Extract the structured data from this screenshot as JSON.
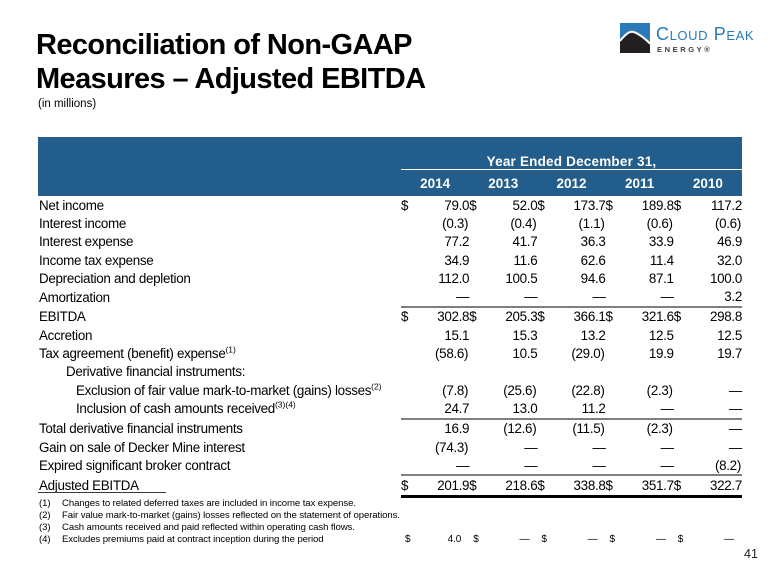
{
  "slide": {
    "title_line1": "Reconciliation of Non-GAAP",
    "title_line2": "Measures – Adjusted EBITDA",
    "subtitle": "(in millions)",
    "page_number": "41"
  },
  "logo": {
    "company": "Cloud Peak",
    "division": "ENERGY®",
    "brand_blue": "#2B7AB8",
    "icon_dark": "#231F20"
  },
  "colors": {
    "header_bg": "#235D8C",
    "header_text": "#FFFFFF",
    "rule_gray": "#7F7F7F",
    "rule_black": "#000000"
  },
  "table": {
    "group_header": "Year Ended December 31,",
    "years": [
      "2014",
      "2013",
      "2012",
      "2011",
      "2010"
    ],
    "rows": [
      {
        "label": "Net income",
        "indent": 0,
        "sup": "",
        "dollar": true,
        "top_rule": false,
        "bottom_rule": false,
        "values": [
          "79.0",
          "52.0",
          "173.7",
          "189.8",
          "117.2"
        ]
      },
      {
        "label": "Interest income",
        "indent": 0,
        "sup": "",
        "dollar": false,
        "top_rule": false,
        "bottom_rule": false,
        "values": [
          "(0.3)",
          "(0.4)",
          "(1.1)",
          "(0.6)",
          "(0.6)"
        ]
      },
      {
        "label": "Interest expense",
        "indent": 0,
        "sup": "",
        "dollar": false,
        "top_rule": false,
        "bottom_rule": false,
        "values": [
          "77.2",
          "41.7",
          "36.3",
          "33.9",
          "46.9"
        ]
      },
      {
        "label": "Income tax expense",
        "indent": 0,
        "sup": "",
        "dollar": false,
        "top_rule": false,
        "bottom_rule": false,
        "values": [
          "34.9",
          "11.6",
          "62.6",
          "11.4",
          "32.0"
        ]
      },
      {
        "label": "Depreciation and depletion",
        "indent": 0,
        "sup": "",
        "dollar": false,
        "top_rule": false,
        "bottom_rule": false,
        "values": [
          "112.0",
          "100.5",
          "94.6",
          "87.1",
          "100.0"
        ]
      },
      {
        "label": "Amortization",
        "indent": 0,
        "sup": "",
        "dollar": false,
        "top_rule": false,
        "bottom_rule": false,
        "values": [
          "—",
          "—",
          "—",
          "—",
          "3.2"
        ]
      },
      {
        "label": "EBITDA",
        "indent": 0,
        "sup": "",
        "dollar": true,
        "top_rule": true,
        "bottom_rule": false,
        "values": [
          "302.8",
          "205.3",
          "366.1",
          "321.6",
          "298.8"
        ]
      },
      {
        "label": "Accretion",
        "indent": 0,
        "sup": "",
        "dollar": false,
        "top_rule": false,
        "bottom_rule": false,
        "values": [
          "15.1",
          "15.3",
          "13.2",
          "12.5",
          "12.5"
        ]
      },
      {
        "label": "Tax agreement (benefit) expense",
        "indent": 0,
        "sup": "(1)",
        "dollar": false,
        "top_rule": false,
        "bottom_rule": false,
        "values": [
          "(58.6)",
          "10.5",
          "(29.0)",
          "19.9",
          "19.7"
        ]
      },
      {
        "label": "Derivative financial instruments:",
        "indent": 1,
        "sup": "",
        "dollar": false,
        "top_rule": false,
        "bottom_rule": false,
        "values": [
          "",
          "",
          "",
          "",
          ""
        ]
      },
      {
        "label": "Exclusion of fair value mark-to-market (gains) losses",
        "indent": 2,
        "sup": "(2)",
        "dollar": false,
        "top_rule": false,
        "bottom_rule": false,
        "values": [
          "(7.8)",
          "(25.6)",
          "(22.8)",
          "(2.3)",
          "—"
        ]
      },
      {
        "label": "Inclusion of cash amounts received",
        "indent": 2,
        "sup": "(3)(4)",
        "dollar": false,
        "top_rule": false,
        "bottom_rule": false,
        "values": [
          "24.7",
          "13.0",
          "11.2",
          "—",
          "—"
        ]
      },
      {
        "label": "Total derivative financial instruments",
        "indent": 0,
        "sup": "",
        "dollar": false,
        "top_rule": true,
        "bottom_rule": false,
        "values": [
          "16.9",
          "(12.6)",
          "(11.5)",
          "(2.3)",
          "—"
        ]
      },
      {
        "label": "Gain on sale of Decker Mine interest",
        "indent": 0,
        "sup": "",
        "dollar": false,
        "top_rule": false,
        "bottom_rule": false,
        "values": [
          "(74.3)",
          "—",
          "—",
          "—",
          "—"
        ]
      },
      {
        "label": "Expired significant broker contract",
        "indent": 0,
        "sup": "",
        "dollar": false,
        "top_rule": false,
        "bottom_rule": false,
        "values": [
          "—",
          "—",
          "—",
          "—",
          "(8.2)"
        ]
      },
      {
        "label": "Adjusted EBITDA",
        "indent": 0,
        "sup": "",
        "dollar": true,
        "top_rule": true,
        "bottom_rule": true,
        "values": [
          "201.9",
          "218.6",
          "338.8",
          "351.7",
          "322.7"
        ]
      }
    ]
  },
  "footnotes": [
    {
      "num": "(1)",
      "text": "Changes to related deferred taxes are included in income tax expense.",
      "dollar": false,
      "values": null
    },
    {
      "num": "(2)",
      "text": "Fair value mark-to-market (gains) losses reflected on the statement of operations.",
      "dollar": false,
      "values": null
    },
    {
      "num": "(3)",
      "text": "Cash amounts received and paid reflected within operating cash flows.",
      "dollar": false,
      "values": null
    },
    {
      "num": "(4)",
      "text": "Excludes premiums paid at contract inception during the period",
      "dollar": true,
      "values": [
        "4.0",
        "—",
        "—",
        "—",
        "—"
      ]
    }
  ]
}
